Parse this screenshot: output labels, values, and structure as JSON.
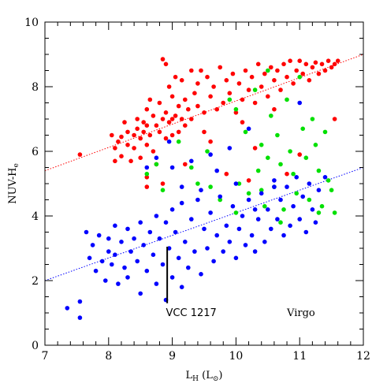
{
  "chart_data": {
    "type": "scatter",
    "title": "",
    "xlabel": "L",
    "xlabel_sub": "H",
    "xlabel_unit": "(L",
    "xlabel_unit_sub": "⊙",
    "xlabel_close": ")",
    "ylabel": "NUV-H",
    "ylabel_sub": "e",
    "xlim": [
      7,
      12
    ],
    "ylim": [
      0,
      10
    ],
    "xticks": [
      "7",
      "8",
      "9",
      "10",
      "11",
      "12"
    ],
    "yticks": [
      "0",
      "2",
      "4",
      "6",
      "8",
      "10"
    ],
    "grid": false,
    "series": [
      {
        "color": "#ff0000",
        "points": [
          [
            7.55,
            5.9
          ],
          [
            8.05,
            6.5
          ],
          [
            8.1,
            6.1
          ],
          [
            8.1,
            5.7
          ],
          [
            8.15,
            6.3
          ],
          [
            8.2,
            6.45
          ],
          [
            8.2,
            5.85
          ],
          [
            8.25,
            6.9
          ],
          [
            8.3,
            6.6
          ],
          [
            8.3,
            6.2
          ],
          [
            8.35,
            5.7
          ],
          [
            8.4,
            6.5
          ],
          [
            8.4,
            6.1
          ],
          [
            8.45,
            7.0
          ],
          [
            8.45,
            6.7
          ],
          [
            8.5,
            6.4
          ],
          [
            8.5,
            5.8
          ],
          [
            8.55,
            6.9
          ],
          [
            8.55,
            6.6
          ],
          [
            8.6,
            7.3
          ],
          [
            8.6,
            6.8
          ],
          [
            8.6,
            6.2
          ],
          [
            8.65,
            7.6
          ],
          [
            8.65,
            6.5
          ],
          [
            8.7,
            7.1
          ],
          [
            8.7,
            6.0
          ],
          [
            8.75,
            6.8
          ],
          [
            8.75,
            5.6
          ],
          [
            8.8,
            7.5
          ],
          [
            8.8,
            6.6
          ],
          [
            8.85,
            8.85
          ],
          [
            8.85,
            7.0
          ],
          [
            8.9,
            8.7
          ],
          [
            8.9,
            7.2
          ],
          [
            8.9,
            6.4
          ],
          [
            8.95,
            8.0
          ],
          [
            8.95,
            6.9
          ],
          [
            9.0,
            7.7
          ],
          [
            9.0,
            7.0
          ],
          [
            9.0,
            6.5
          ],
          [
            9.05,
            8.3
          ],
          [
            9.05,
            7.1
          ],
          [
            9.1,
            7.4
          ],
          [
            9.1,
            6.6
          ],
          [
            9.15,
            8.2
          ],
          [
            9.15,
            7.0
          ],
          [
            9.2,
            7.6
          ],
          [
            9.2,
            6.8
          ],
          [
            9.25,
            7.3
          ],
          [
            9.3,
            8.5
          ],
          [
            9.3,
            7.0
          ],
          [
            9.35,
            7.8
          ],
          [
            9.4,
            8.1
          ],
          [
            9.4,
            7.4
          ],
          [
            9.45,
            8.5
          ],
          [
            9.5,
            7.2
          ],
          [
            9.55,
            8.3
          ],
          [
            9.6,
            7.7
          ],
          [
            9.65,
            8.0
          ],
          [
            9.7,
            7.3
          ],
          [
            9.75,
            8.6
          ],
          [
            9.8,
            7.5
          ],
          [
            9.85,
            8.2
          ],
          [
            9.9,
            7.8
          ],
          [
            9.95,
            8.4
          ],
          [
            10.0,
            7.2
          ],
          [
            10.05,
            8.1
          ],
          [
            10.1,
            7.6
          ],
          [
            10.15,
            8.5
          ],
          [
            10.2,
            7.9
          ],
          [
            10.25,
            8.3
          ],
          [
            10.3,
            7.5
          ],
          [
            10.35,
            8.7
          ],
          [
            10.4,
            8.0
          ],
          [
            10.45,
            8.4
          ],
          [
            10.5,
            7.7
          ],
          [
            10.55,
            8.6
          ],
          [
            10.6,
            8.2
          ],
          [
            10.65,
            8.5
          ],
          [
            10.7,
            7.9
          ],
          [
            10.75,
            8.7
          ],
          [
            10.8,
            8.3
          ],
          [
            10.85,
            8.8
          ],
          [
            10.9,
            8.1
          ],
          [
            10.95,
            8.5
          ],
          [
            11.0,
            8.8
          ],
          [
            11.05,
            8.4
          ],
          [
            11.1,
            8.7
          ],
          [
            11.15,
            8.2
          ],
          [
            11.2,
            8.6
          ],
          [
            11.25,
            8.75
          ],
          [
            11.3,
            8.4
          ],
          [
            11.35,
            8.7
          ],
          [
            11.4,
            8.5
          ],
          [
            11.45,
            8.8
          ],
          [
            11.5,
            8.6
          ],
          [
            11.55,
            8.7
          ],
          [
            11.6,
            8.8
          ],
          [
            11.55,
            7.0
          ],
          [
            10.6,
            7.3
          ],
          [
            10.1,
            6.9
          ],
          [
            9.5,
            6.6
          ],
          [
            9.2,
            5.6
          ],
          [
            8.85,
            5.0
          ],
          [
            8.6,
            5.2
          ],
          [
            8.6,
            4.9
          ],
          [
            9.6,
            6.3
          ],
          [
            10.3,
            6.1
          ],
          [
            10.8,
            5.3
          ],
          [
            11.0,
            5.9
          ],
          [
            10.2,
            5.1
          ],
          [
            9.85,
            5.3
          ]
        ]
      },
      {
        "color": "#00e000",
        "points": [
          [
            8.6,
            5.3
          ],
          [
            8.85,
            4.8
          ],
          [
            9.1,
            6.3
          ],
          [
            9.3,
            5.5
          ],
          [
            9.55,
            6.0
          ],
          [
            9.6,
            4.9
          ],
          [
            9.75,
            4.5
          ],
          [
            9.9,
            7.6
          ],
          [
            10.0,
            7.3
          ],
          [
            10.05,
            5.0
          ],
          [
            10.15,
            6.6
          ],
          [
            10.2,
            4.7
          ],
          [
            10.3,
            7.9
          ],
          [
            10.35,
            5.4
          ],
          [
            10.4,
            6.2
          ],
          [
            10.45,
            4.3
          ],
          [
            10.5,
            8.5
          ],
          [
            10.5,
            5.8
          ],
          [
            10.55,
            7.1
          ],
          [
            10.6,
            4.9
          ],
          [
            10.65,
            6.5
          ],
          [
            10.7,
            5.6
          ],
          [
            10.75,
            4.2
          ],
          [
            10.8,
            7.6
          ],
          [
            10.85,
            6.0
          ],
          [
            10.9,
            5.3
          ],
          [
            10.95,
            4.7
          ],
          [
            11.0,
            8.3
          ],
          [
            11.05,
            6.7
          ],
          [
            11.1,
            5.8
          ],
          [
            11.15,
            4.5
          ],
          [
            11.2,
            7.0
          ],
          [
            11.25,
            6.2
          ],
          [
            11.3,
            5.4
          ],
          [
            11.35,
            4.3
          ],
          [
            11.4,
            6.6
          ],
          [
            11.45,
            5.1
          ],
          [
            11.5,
            4.8
          ],
          [
            11.55,
            4.1
          ],
          [
            10.0,
            4.1
          ],
          [
            10.4,
            4.8
          ],
          [
            10.7,
            3.8
          ],
          [
            11.3,
            4.1
          ],
          [
            9.4,
            5.0
          ],
          [
            8.75,
            5.6
          ]
        ]
      },
      {
        "color": "#0000ff",
        "points": [
          [
            7.35,
            1.15
          ],
          [
            7.55,
            1.35
          ],
          [
            7.55,
            0.85
          ],
          [
            7.65,
            3.5
          ],
          [
            7.7,
            2.7
          ],
          [
            7.75,
            3.1
          ],
          [
            7.8,
            2.3
          ],
          [
            7.85,
            3.4
          ],
          [
            7.9,
            2.6
          ],
          [
            7.95,
            2.0
          ],
          [
            8.0,
            2.9
          ],
          [
            8.0,
            3.3
          ],
          [
            8.05,
            2.5
          ],
          [
            8.1,
            3.7
          ],
          [
            8.1,
            2.8
          ],
          [
            8.15,
            1.9
          ],
          [
            8.2,
            3.2
          ],
          [
            8.25,
            2.4
          ],
          [
            8.3,
            3.6
          ],
          [
            8.3,
            2.1
          ],
          [
            8.35,
            2.9
          ],
          [
            8.4,
            3.3
          ],
          [
            8.45,
            2.6
          ],
          [
            8.5,
            3.8
          ],
          [
            8.5,
            1.6
          ],
          [
            8.55,
            3.1
          ],
          [
            8.6,
            5.5
          ],
          [
            8.6,
            2.3
          ],
          [
            8.65,
            3.5
          ],
          [
            8.7,
            2.8
          ],
          [
            8.75,
            4.0
          ],
          [
            8.75,
            1.9
          ],
          [
            8.8,
            3.3
          ],
          [
            8.85,
            2.5
          ],
          [
            8.9,
            3.8
          ],
          [
            8.9,
            1.4
          ],
          [
            8.95,
            3.0
          ],
          [
            9.0,
            4.2
          ],
          [
            9.0,
            2.1
          ],
          [
            9.05,
            3.5
          ],
          [
            9.1,
            2.7
          ],
          [
            9.15,
            4.4
          ],
          [
            9.15,
            1.8
          ],
          [
            9.2,
            3.2
          ],
          [
            9.25,
            2.4
          ],
          [
            9.3,
            3.9
          ],
          [
            9.35,
            2.9
          ],
          [
            9.4,
            4.5
          ],
          [
            9.45,
            2.2
          ],
          [
            9.5,
            3.6
          ],
          [
            9.55,
            3.0
          ],
          [
            9.6,
            4.1
          ],
          [
            9.65,
            2.6
          ],
          [
            9.7,
            3.4
          ],
          [
            9.75,
            4.6
          ],
          [
            9.8,
            2.9
          ],
          [
            9.85,
            3.7
          ],
          [
            9.9,
            3.2
          ],
          [
            9.95,
            4.3
          ],
          [
            10.0,
            2.7
          ],
          [
            10.05,
            3.6
          ],
          [
            10.1,
            4.0
          ],
          [
            10.15,
            3.1
          ],
          [
            10.2,
            4.5
          ],
          [
            10.25,
            3.4
          ],
          [
            10.3,
            2.9
          ],
          [
            10.35,
            3.9
          ],
          [
            10.4,
            4.7
          ],
          [
            10.45,
            3.2
          ],
          [
            10.5,
            4.2
          ],
          [
            10.55,
            3.6
          ],
          [
            10.6,
            5.1
          ],
          [
            10.65,
            3.9
          ],
          [
            10.7,
            4.5
          ],
          [
            10.75,
            3.4
          ],
          [
            10.8,
            4.9
          ],
          [
            10.85,
            3.7
          ],
          [
            10.9,
            4.3
          ],
          [
            10.95,
            5.2
          ],
          [
            11.0,
            3.9
          ],
          [
            11.05,
            4.6
          ],
          [
            11.1,
            3.5
          ],
          [
            11.15,
            5.0
          ],
          [
            11.2,
            4.2
          ],
          [
            11.25,
            3.8
          ],
          [
            11.3,
            4.8
          ],
          [
            11.4,
            5.2
          ],
          [
            11.0,
            7.5
          ],
          [
            10.2,
            6.7
          ],
          [
            9.9,
            6.1
          ],
          [
            9.6,
            5.9
          ],
          [
            9.3,
            5.7
          ],
          [
            9.0,
            5.5
          ],
          [
            8.75,
            5.8
          ],
          [
            8.95,
            6.3
          ],
          [
            9.15,
            4.9
          ],
          [
            9.45,
            4.8
          ],
          [
            9.7,
            5.4
          ],
          [
            10.0,
            5.0
          ],
          [
            10.3,
            4.2
          ],
          [
            10.6,
            4.9
          ]
        ]
      }
    ],
    "fit_lines": [
      {
        "color": "#ff0000",
        "x": [
          7.0,
          12.0
        ],
        "y": [
          5.4,
          9.0
        ]
      },
      {
        "color": "#0000ff",
        "x": [
          7.0,
          12.0
        ],
        "y": [
          2.0,
          5.5
        ]
      }
    ],
    "annotations": [
      {
        "text": "VCC 1217",
        "x": 8.9,
        "y": 1.0
      },
      {
        "text": "Virgo",
        "x": 10.8,
        "y": 1.0
      }
    ],
    "marker": {
      "x": 8.92,
      "y_top": 3.05,
      "y_bottom": 1.3
    }
  }
}
